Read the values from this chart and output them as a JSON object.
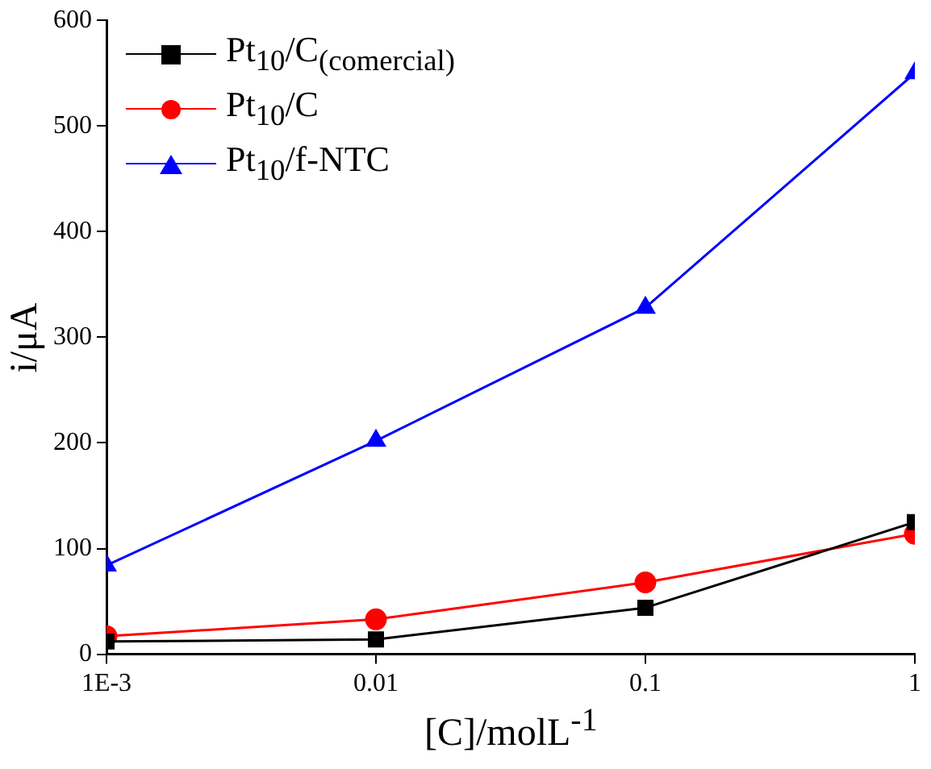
{
  "chart_data": {
    "type": "line",
    "xlabel": "[C]/molL$^{-1}$",
    "ylabel": "i/μA",
    "log": "x",
    "x": [
      0.001,
      0.01,
      0.1,
      1
    ],
    "xlim": [
      0.001,
      1
    ],
    "xticks": [
      {
        "value": 0.001,
        "label": "1E-3"
      },
      0.01,
      0.1,
      1
    ],
    "ylim": [
      0,
      600
    ],
    "yticks": [
      0,
      100,
      200,
      300,
      400,
      500,
      600
    ],
    "legend": "top left",
    "grid": false,
    "series": [
      {
        "name": "Pt$_{10}$/C$_{(comercial)}$",
        "color": "#000000",
        "marker": "square",
        "values": [
          12,
          14,
          44,
          125
        ]
      },
      {
        "name": "Pt$_{10}$/C",
        "color": "#ff0000",
        "marker": "circle",
        "values": [
          17,
          33,
          68,
          114
        ]
      },
      {
        "name": "Pt$_{10}$/f-NTC",
        "color": "#0000ff",
        "marker": "triangle",
        "values": [
          84,
          202,
          328,
          550
        ]
      }
    ]
  }
}
